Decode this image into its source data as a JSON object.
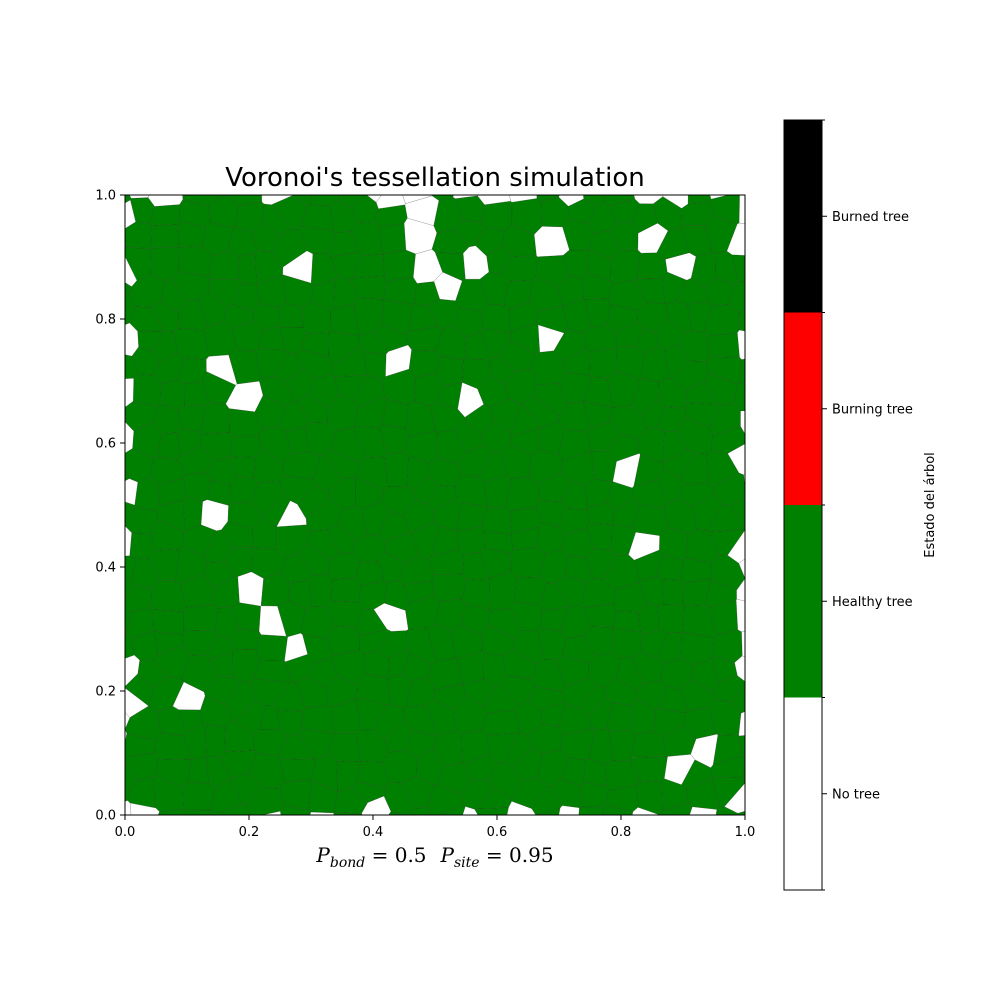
{
  "chart_data": {
    "type": "heatmap",
    "title": "Voronoi's tessellation simulation",
    "xlabel_parts": {
      "p1": "P",
      "p1_sub": "bond",
      "p1_eq": " = 0.5",
      "p2": "P",
      "p2_sub": "site",
      "p2_eq": " = 0.95"
    },
    "xlim": [
      0.0,
      1.0
    ],
    "ylim": [
      0.0,
      1.0
    ],
    "x_ticks": [
      "0.0",
      "0.2",
      "0.4",
      "0.6",
      "0.8",
      "1.0"
    ],
    "y_ticks": [
      "0.0",
      "0.2",
      "0.4",
      "0.6",
      "0.8",
      "1.0"
    ],
    "grid": false,
    "site_probability": 0.95,
    "bond_probability": 0.5,
    "colorbar": {
      "label": "Estado del árbol",
      "categories": [
        {
          "label": "No tree",
          "color": "#ffffff"
        },
        {
          "label": "Healthy tree",
          "color": "#008000"
        },
        {
          "label": "Burning tree",
          "color": "#ff0000"
        },
        {
          "label": "Burned tree",
          "color": "#000000"
        }
      ]
    },
    "cell_edge_color": "#222222"
  }
}
